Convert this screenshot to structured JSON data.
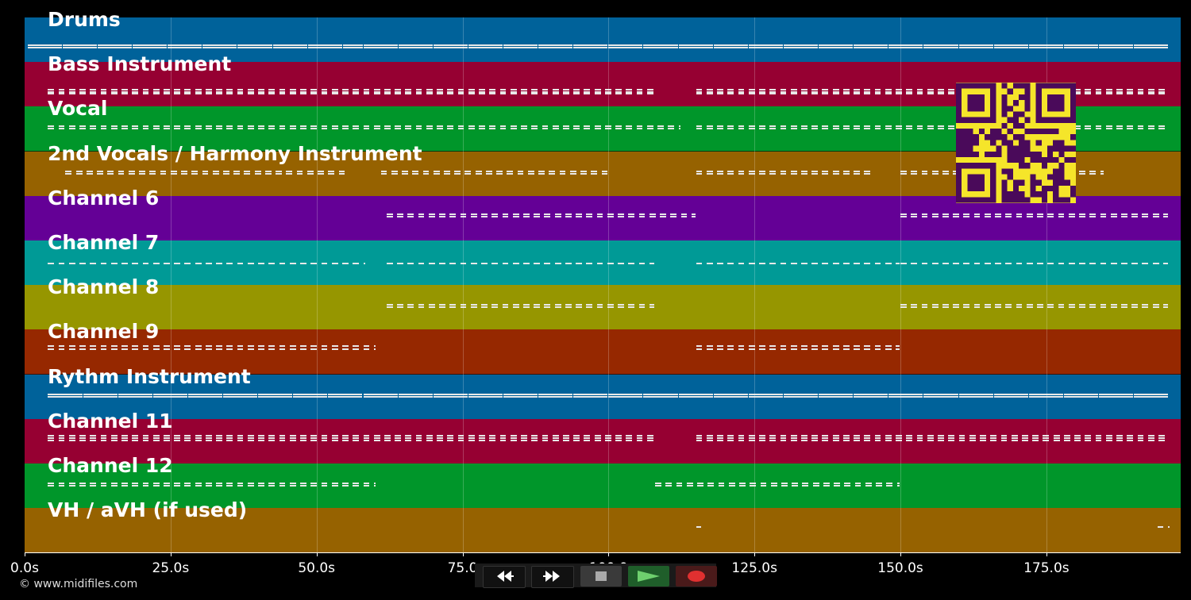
{
  "tracks": [
    {
      "name": "Drums",
      "color": "#00629a"
    },
    {
      "name": "Bass Instrument",
      "color": "#960032"
    },
    {
      "name": "Vocal",
      "color": "#00962a"
    },
    {
      "name": "2nd Vocals / Harmony Instrument",
      "color": "#966200"
    },
    {
      "name": "Channel 6",
      "color": "#640096"
    },
    {
      "name": "Channel 7",
      "color": "#009a96"
    },
    {
      "name": "Channel 8",
      "color": "#969600"
    },
    {
      "name": "Channel 9",
      "color": "#962800"
    },
    {
      "name": "Rythm Instrument",
      "color": "#00629a"
    },
    {
      "name": "Channel 11",
      "color": "#960032"
    },
    {
      "name": "Channel 12",
      "color": "#00962a"
    },
    {
      "name": "VH / aVH (if used)",
      "color": "#966200"
    }
  ],
  "time_axis": {
    "unit": "s",
    "max": 198,
    "ticks": [
      "0.0s",
      "25.0s",
      "50.0s",
      "75.0",
      "100.0",
      "125.0s",
      "150.0s",
      "175.0s"
    ]
  },
  "copyright": "© www.midifiles.com",
  "transport": {
    "buttons": [
      {
        "name": "rewind-button",
        "icon": "rewind-icon"
      },
      {
        "name": "fast-forward-button",
        "icon": "fast-forward-icon"
      },
      {
        "name": "stop-button",
        "icon": "stop-icon"
      },
      {
        "name": "play-button",
        "icon": "play-icon"
      },
      {
        "name": "record-button",
        "icon": "record-icon"
      }
    ]
  }
}
